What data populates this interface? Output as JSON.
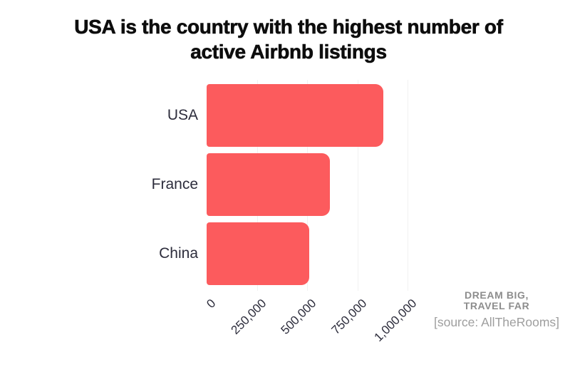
{
  "title": {
    "line1": "USA is the country with the highest number of",
    "line2": "active Airbnb listings"
  },
  "chart_data": {
    "type": "bar",
    "orientation": "horizontal",
    "title": "USA is the country with the highest number of active Airbnb listings",
    "categories": [
      "USA",
      "France",
      "China"
    ],
    "values": [
      880000,
      612000,
      510000
    ],
    "x_axis": {
      "tick_labels": [
        "0",
        "250,000",
        "500,000",
        "750,000",
        "1,000,000"
      ],
      "tick_values": [
        0,
        250000,
        500000,
        750000,
        1000000
      ],
      "min": 0,
      "max": 1000000,
      "tick_rotation_deg": -45
    },
    "grid": "faint vertical gridlines at each tick",
    "legend": "none",
    "bar_color": "#FC5B5D",
    "label_color": "#2d2d3c",
    "gridline_color": "#f1f1f1"
  },
  "watermark": {
    "line1": "DREAM BIG,",
    "line2": "TRAVEL FAR",
    "source": "[source: AllTheRooms]"
  }
}
